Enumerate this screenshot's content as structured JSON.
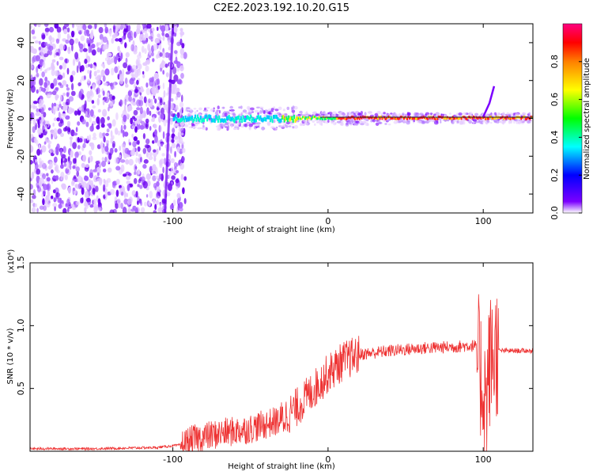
{
  "title": "C2E2.2023.192.10.20.G15",
  "chart_data": [
    {
      "type": "heatmap",
      "xlabel": "Height of straight line (km)",
      "ylabel": "Frequency (Hz)",
      "xlim": [
        -192,
        132
      ],
      "ylim": [
        -50,
        50
      ],
      "xticks": [
        -100,
        0,
        100
      ],
      "yticks": [
        -40,
        -20,
        0,
        20,
        40
      ],
      "colorbar": {
        "label": "Normalized spectral amplitude",
        "range": [
          0,
          1
        ],
        "ticks": [
          "0.0",
          "0.2",
          "0.4",
          "0.6",
          "0.8"
        ],
        "colors": [
          "#ffffff",
          "#7b00ff",
          "#0000ff",
          "#00ffff",
          "#00ff00",
          "#ffff00",
          "#ff8000",
          "#ff0000",
          "#ff0080"
        ]
      },
      "noise_region_x": [
        -192,
        -92
      ],
      "signal_line_freq": 0
    },
    {
      "type": "line",
      "xlabel": "Height of straight line (km)",
      "ylabel": "SNR (10 * v/v)",
      "y_multiplier": "(x10⁴)",
      "xlim": [
        -192,
        132
      ],
      "ylim": [
        0,
        1.5
      ],
      "xticks": [
        -100,
        0,
        100
      ],
      "yticks": [
        "0.5",
        "1.0",
        "1.5"
      ],
      "series": [
        {
          "color": "#ee3333",
          "x": [
            -192,
            -150,
            -110,
            -95,
            -85,
            -70,
            -50,
            -30,
            -20,
            -10,
            0,
            10,
            20,
            40,
            60,
            80,
            90,
            95,
            100,
            102,
            104,
            108,
            115,
            125,
            132
          ],
          "y": [
            0.02,
            0.02,
            0.03,
            0.05,
            0.1,
            0.14,
            0.18,
            0.25,
            0.35,
            0.48,
            0.62,
            0.72,
            0.77,
            0.8,
            0.82,
            0.83,
            0.84,
            0.84,
            0.5,
            0.4,
            0.7,
            0.8,
            0.8,
            0.8,
            0.8
          ]
        }
      ]
    }
  ]
}
